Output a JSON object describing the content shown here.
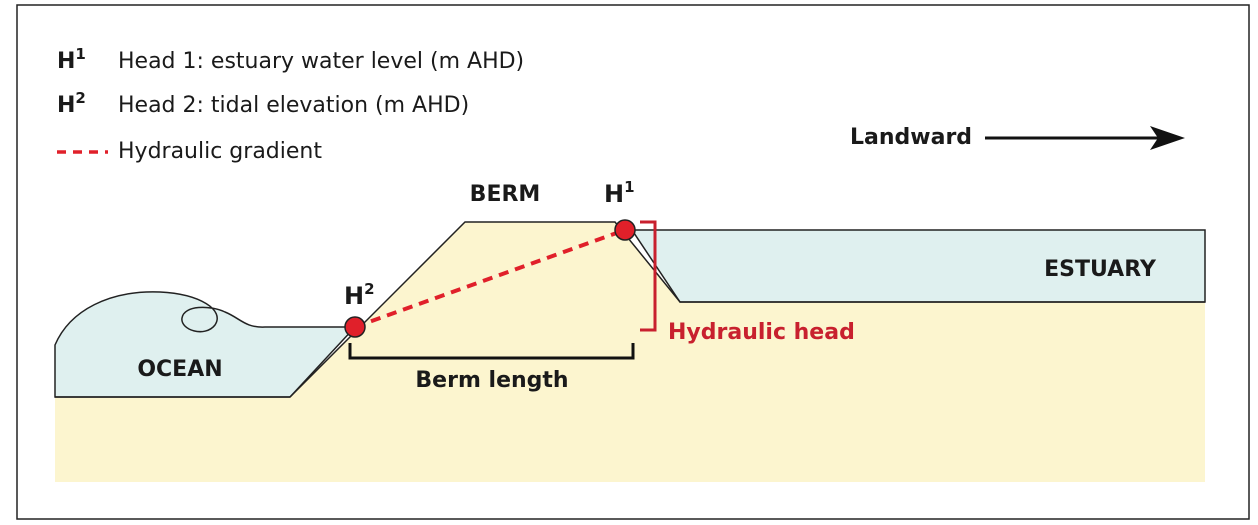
{
  "legend": {
    "items": [
      {
        "symbol": "H",
        "sup": "1",
        "label": "Head 1: estuary water level (m AHD)"
      },
      {
        "symbol": "H",
        "sup": "2",
        "label": "Head 2: tidal elevation (m AHD)"
      },
      {
        "label": "Hydraulic gradient"
      }
    ]
  },
  "direction": "Landward",
  "labels": {
    "berm": "BERM",
    "estuary": "ESTUARY",
    "ocean": "OCEAN",
    "berm_length": "Berm length",
    "hydraulic_head": "Hydraulic head"
  },
  "points": [
    {
      "symbol": "H",
      "sup": "2"
    },
    {
      "symbol": "H",
      "sup": "1"
    }
  ]
}
